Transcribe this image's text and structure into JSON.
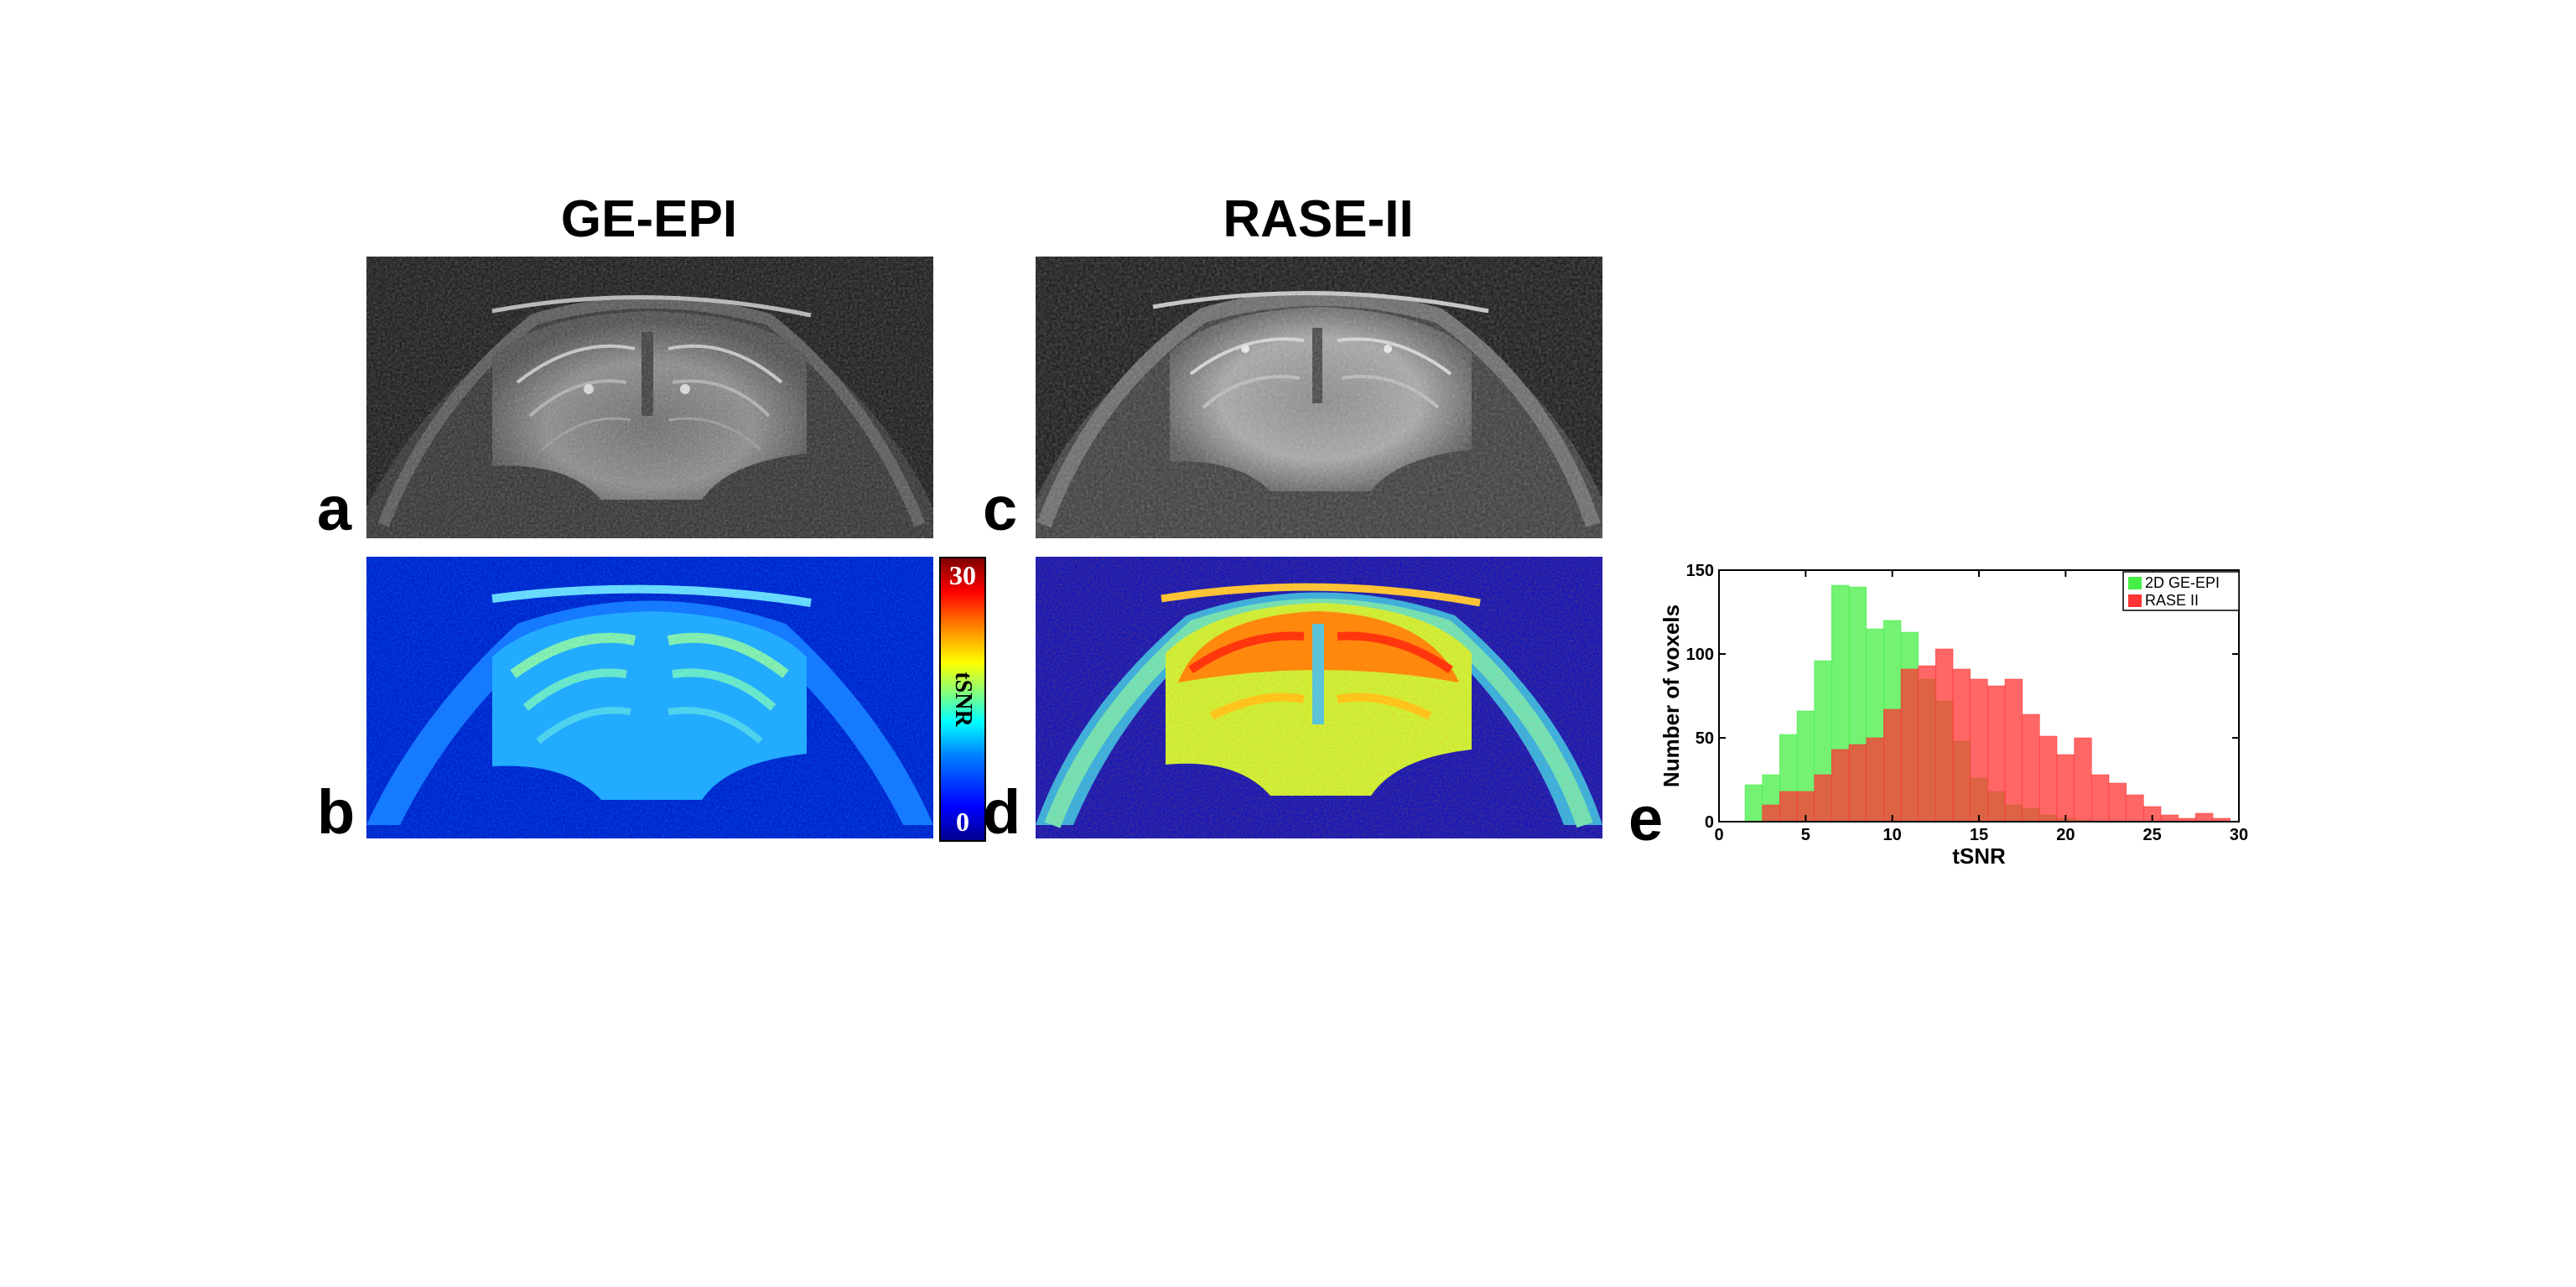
{
  "figure": {
    "columns": [
      {
        "title": "GE-EPI"
      },
      {
        "title": "RASE-II"
      }
    ],
    "panel_labels": {
      "a": "a",
      "b": "b",
      "c": "c",
      "d": "d",
      "e": "e"
    },
    "colorbar": {
      "max_label": "30",
      "min_label": "0",
      "label": "tSNR",
      "colormap": "jet",
      "range": [
        0,
        30
      ]
    },
    "colors": {
      "epi": "#00ee00",
      "rase": "#ee0000",
      "map_background": "#0000c8"
    }
  },
  "chart_data": {
    "type": "bar",
    "xlabel": "tSNR",
    "ylabel": "Number of voxels",
    "xlim": [
      0,
      30
    ],
    "ylim": [
      0,
      150
    ],
    "xticks": [
      "0",
      "5",
      "10",
      "15",
      "20",
      "25",
      "30"
    ],
    "yticks": [
      "0",
      "50",
      "100",
      "150"
    ],
    "bin_width": 1,
    "legend": {
      "placement": "top-right"
    },
    "series": [
      {
        "name": "2D GE-EPI",
        "color": "#44ee44",
        "x": [
          2,
          3,
          4,
          5,
          6,
          7,
          8,
          9,
          10,
          11,
          12,
          13,
          14,
          15,
          16,
          17,
          18,
          19,
          20,
          21,
          22
        ],
        "values": [
          22,
          28,
          52,
          66,
          96,
          141,
          140,
          115,
          120,
          113,
          85,
          72,
          48,
          26,
          18,
          10,
          8,
          4,
          2,
          1,
          0
        ]
      },
      {
        "name": "RASE II",
        "color": "#ff3333",
        "x": [
          2,
          3,
          4,
          5,
          6,
          7,
          8,
          9,
          10,
          11,
          12,
          13,
          14,
          15,
          16,
          17,
          18,
          19,
          20,
          21,
          22,
          23,
          24,
          25,
          26,
          27,
          28,
          29
        ],
        "values": [
          0,
          10,
          18,
          18,
          28,
          43,
          46,
          50,
          67,
          91,
          93,
          103,
          91,
          85,
          81,
          85,
          64,
          51,
          40,
          50,
          28,
          23,
          16,
          9,
          4,
          2,
          5,
          2
        ]
      }
    ]
  }
}
